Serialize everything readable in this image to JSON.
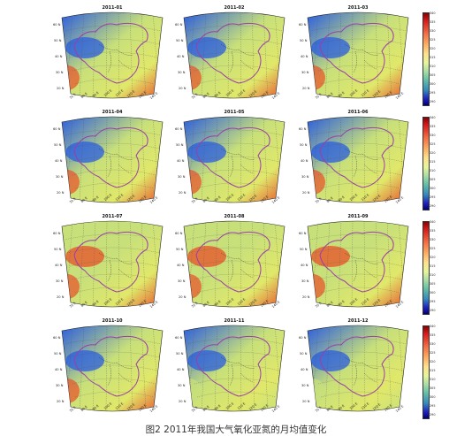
{
  "figure": {
    "caption": "图2 2011年我国大气氧化亚氮的月均值变化"
  },
  "maps": [
    {
      "title": "2011-01",
      "west": "low",
      "southwest": "high",
      "plateau": "low"
    },
    {
      "title": "2011-02",
      "west": "low",
      "southwest": "high",
      "plateau": "low"
    },
    {
      "title": "2011-03",
      "west": "low",
      "southwest": "high",
      "plateau": "low"
    },
    {
      "title": "2011-04",
      "west": "low",
      "southwest": "high",
      "plateau": "low"
    },
    {
      "title": "2011-05",
      "west": "low",
      "southwest": "high",
      "plateau": "low"
    },
    {
      "title": "2011-06",
      "west": "low",
      "southwest": "high",
      "plateau": "low"
    },
    {
      "title": "2011-07",
      "west": "mid",
      "southwest": "high",
      "plateau": "high"
    },
    {
      "title": "2011-08",
      "west": "mid",
      "southwest": "high",
      "plateau": "high"
    },
    {
      "title": "2011-09",
      "west": "mid",
      "southwest": "high",
      "plateau": "high"
    },
    {
      "title": "2011-10",
      "west": "low",
      "southwest": "high",
      "plateau": "low"
    },
    {
      "title": "2011-11",
      "west": "low",
      "southwest": "mid",
      "plateau": "low"
    },
    {
      "title": "2011-12",
      "west": "low",
      "southwest": "mid",
      "plateau": "low"
    }
  ],
  "axes": {
    "lat_labels": [
      "60 N",
      "50 N",
      "40 N",
      "30 N",
      "20 N"
    ],
    "lon_labels": [
      "70 E",
      "80 E",
      "90 E",
      "100 E",
      "110 E",
      "120 E",
      "130 E",
      "140 E"
    ]
  },
  "colorbar": {
    "ticks": [
      "340",
      "335",
      "330",
      "325",
      "320",
      "315",
      "310",
      "305",
      "300",
      "295",
      "290"
    ]
  },
  "colors": {
    "border_line": "#9b3fa8",
    "province_line": "#333333",
    "low": "#2a5de0",
    "mid": "#c8e07a",
    "high": "#e8502a"
  }
}
